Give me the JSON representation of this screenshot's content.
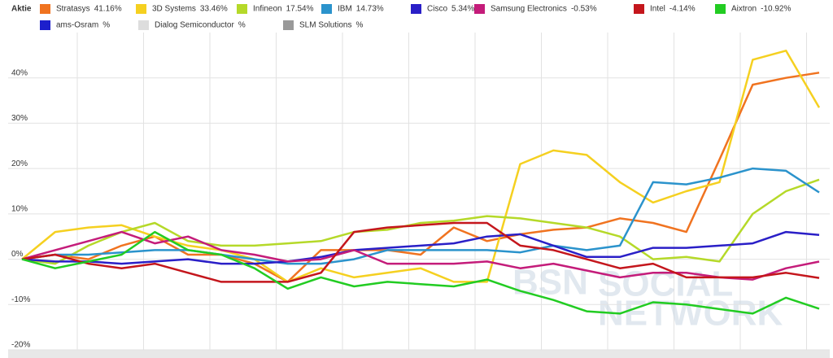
{
  "chart_data": {
    "type": "line",
    "legend_title": "Aktie",
    "watermark": [
      "BSN",
      "SOCIAL",
      "NETWORK"
    ],
    "categories": [
      null,
      null,
      null,
      null,
      null,
      null,
      null,
      null,
      null,
      null,
      null,
      null,
      null,
      null,
      null,
      null,
      null,
      null,
      null,
      null,
      null,
      null,
      null,
      null,
      null
    ],
    "ylim": [
      -20,
      50
    ],
    "yticks": [
      {
        "value": -20,
        "label": "-20%"
      },
      {
        "value": -10,
        "label": "-10%"
      },
      {
        "value": 0,
        "label": "0%"
      },
      {
        "value": 10,
        "label": "10%"
      },
      {
        "value": 20,
        "label": "20%"
      },
      {
        "value": 30,
        "label": "30%"
      },
      {
        "value": 40,
        "label": "40%"
      }
    ],
    "grid": true,
    "series": [
      {
        "name": "Stratasys",
        "color": "#f07320",
        "change": 41.16,
        "change_label": "41.16%",
        "values": [
          0,
          1,
          0,
          3,
          5,
          1,
          1,
          -1,
          -5,
          2,
          2,
          2,
          1,
          7,
          4,
          5.5,
          6.5,
          7,
          9,
          8,
          6,
          22,
          38.5,
          40,
          41.16
        ]
      },
      {
        "name": "3D Systems",
        "color": "#f5d020",
        "change": 33.46,
        "change_label": "33.46%",
        "values": [
          0,
          6,
          7,
          7.5,
          5,
          3,
          2,
          0,
          -5,
          -2,
          -4,
          -3,
          -2,
          -5,
          -5,
          21,
          24,
          23,
          17,
          12.5,
          15,
          17,
          44,
          46,
          33.46
        ]
      },
      {
        "name": "Infineon",
        "color": "#b5d929",
        "change": 17.54,
        "change_label": "17.54%",
        "values": [
          0,
          -1,
          3,
          6,
          8,
          4,
          3,
          3,
          3.5,
          4,
          6,
          6.5,
          8,
          8.5,
          9.5,
          9,
          8,
          7,
          5,
          0,
          0.5,
          -0.5,
          10,
          15,
          17.54
        ]
      },
      {
        "name": "IBM",
        "color": "#2b93cc",
        "change": 14.73,
        "change_label": "14.73%",
        "values": [
          0,
          1,
          1,
          1.5,
          2,
          2,
          1,
          0,
          -1,
          -1,
          0,
          2,
          2,
          2,
          2,
          1.5,
          3,
          2,
          3,
          17,
          16.5,
          18,
          20,
          19.5,
          14.73
        ]
      },
      {
        "name": "Cisco",
        "color": "#2a1fc7",
        "change": 5.34,
        "change_label": "5.34%",
        "values": [
          0,
          -0.5,
          -0.5,
          -1,
          -0.5,
          0,
          -1,
          -1,
          -0.5,
          0.5,
          2,
          2.5,
          3,
          3.5,
          5,
          5.5,
          3,
          0.5,
          0.5,
          2.5,
          2.5,
          3,
          3.5,
          6,
          5.34
        ]
      },
      {
        "name": "Samsung Electronics",
        "color": "#c41c7a",
        "change": -0.53,
        "change_label": "-0.53%",
        "values": [
          0,
          2,
          4,
          6,
          3.5,
          5,
          2,
          1,
          -0.5,
          0,
          2,
          -1,
          -1,
          -1,
          -0.5,
          -2,
          -1,
          -2.5,
          -4,
          -3,
          -3,
          -4,
          -4.5,
          -2,
          -0.53
        ]
      },
      {
        "name": "Intel",
        "color": "#c4161c",
        "change": -4.14,
        "change_label": "-4.14%",
        "values": [
          0,
          1,
          -1,
          -2,
          -1,
          -3,
          -5,
          -5,
          -5,
          -3,
          6,
          7,
          7.5,
          8,
          8,
          3,
          2,
          0,
          -2,
          -1,
          -4,
          -4,
          -4,
          -3,
          -4.14
        ]
      },
      {
        "name": "Aixtron",
        "color": "#22cc22",
        "change": -10.92,
        "change_label": "-10.92%",
        "values": [
          0,
          -2,
          -0.5,
          1,
          6,
          2,
          1,
          -2,
          -6.5,
          -4,
          -6,
          -5,
          -5.5,
          -6,
          -4.5,
          -7,
          -9,
          -11.5,
          -12,
          -9.5,
          -10,
          -11,
          -12,
          -8.5,
          -10.92
        ]
      },
      {
        "name": "ams-Osram",
        "color": "#1d1fcc",
        "change_label": "%"
      },
      {
        "name": "Dialog Semiconductor",
        "color": "#dddddd",
        "change_label": "%"
      },
      {
        "name": "SLM Solutions",
        "color": "#999999",
        "change_label": "%"
      }
    ]
  }
}
